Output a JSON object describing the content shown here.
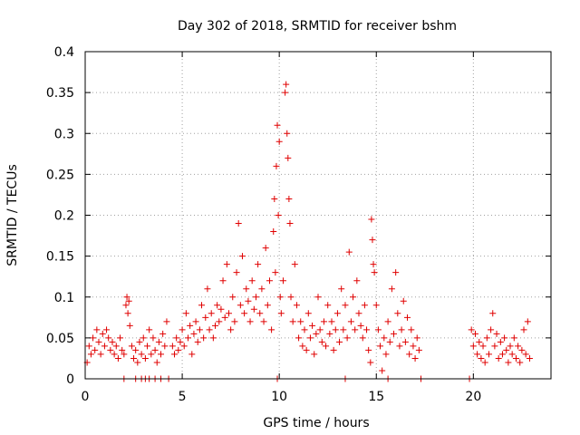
{
  "chart_data": {
    "type": "scatter",
    "title": "Day 302 of 2018, SRMTID for receiver bshm",
    "xlabel": "GPS time / hours",
    "ylabel": "SRMTID / TECUs",
    "xlim": [
      0,
      24
    ],
    "ylim": [
      0,
      0.4
    ],
    "x_ticks": [
      0,
      5,
      10,
      15,
      20
    ],
    "x_tick_labels": [
      "0",
      "5",
      "10",
      "15",
      "20"
    ],
    "y_ticks": [
      0,
      0.05,
      0.1,
      0.15,
      0.2,
      0.25,
      0.3,
      0.35,
      0.4
    ],
    "y_tick_labels": [
      "0",
      "0.05",
      "0.1",
      "0.15",
      "0.2",
      "0.25",
      "0.3",
      "0.35",
      "0.4"
    ],
    "grid": true,
    "marker": "plus",
    "color": "#e00000",
    "series": [
      {
        "name": "SRMTID",
        "points": [
          [
            0.1,
            0.02
          ],
          [
            0.2,
            0.04
          ],
          [
            0.3,
            0.03
          ],
          [
            0.4,
            0.05
          ],
          [
            0.5,
            0.035
          ],
          [
            0.6,
            0.06
          ],
          [
            0.7,
            0.045
          ],
          [
            0.8,
            0.03
          ],
          [
            0.9,
            0.055
          ],
          [
            1.0,
            0.04
          ],
          [
            1.1,
            0.06
          ],
          [
            1.2,
            0.05
          ],
          [
            1.3,
            0.035
          ],
          [
            1.4,
            0.045
          ],
          [
            1.5,
            0.03
          ],
          [
            1.6,
            0.04
          ],
          [
            1.7,
            0.025
          ],
          [
            1.8,
            0.05
          ],
          [
            1.9,
            0.035
          ],
          [
            2.0,
            0.03
          ],
          [
            2.1,
            0.09
          ],
          [
            2.15,
            0.1
          ],
          [
            2.2,
            0.08
          ],
          [
            2.25,
            0.095
          ],
          [
            2.3,
            0.065
          ],
          [
            2.4,
            0.04
          ],
          [
            2.5,
            0.025
          ],
          [
            2.6,
            0.035
          ],
          [
            2.7,
            0.02
          ],
          [
            2.8,
            0.045
          ],
          [
            2.9,
            0.03
          ],
          [
            3.0,
            0.05
          ],
          [
            3.1,
            0.025
          ],
          [
            3.2,
            0.04
          ],
          [
            3.3,
            0.06
          ],
          [
            3.4,
            0.03
          ],
          [
            3.5,
            0.05
          ],
          [
            3.6,
            0.035
          ],
          [
            3.7,
            0.02
          ],
          [
            3.8,
            0.045
          ],
          [
            3.9,
            0.03
          ],
          [
            4.0,
            0.055
          ],
          [
            4.1,
            0.04
          ],
          [
            4.2,
            0.07
          ],
          [
            4.5,
            0.04
          ],
          [
            4.6,
            0.03
          ],
          [
            4.7,
            0.05
          ],
          [
            4.8,
            0.035
          ],
          [
            4.9,
            0.045
          ],
          [
            5.0,
            0.06
          ],
          [
            5.1,
            0.04
          ],
          [
            5.2,
            0.08
          ],
          [
            5.3,
            0.05
          ],
          [
            5.4,
            0.065
          ],
          [
            5.5,
            0.03
          ],
          [
            5.6,
            0.055
          ],
          [
            5.7,
            0.07
          ],
          [
            5.8,
            0.045
          ],
          [
            5.9,
            0.06
          ],
          [
            6.0,
            0.09
          ],
          [
            6.1,
            0.05
          ],
          [
            6.2,
            0.075
          ],
          [
            6.3,
            0.11
          ],
          [
            6.4,
            0.06
          ],
          [
            6.5,
            0.08
          ],
          [
            6.6,
            0.05
          ],
          [
            6.7,
            0.065
          ],
          [
            6.8,
            0.09
          ],
          [
            6.9,
            0.07
          ],
          [
            7.0,
            0.085
          ],
          [
            7.1,
            0.12
          ],
          [
            7.2,
            0.075
          ],
          [
            7.3,
            0.14
          ],
          [
            7.4,
            0.08
          ],
          [
            7.5,
            0.06
          ],
          [
            7.6,
            0.1
          ],
          [
            7.7,
            0.07
          ],
          [
            7.8,
            0.13
          ],
          [
            7.9,
            0.19
          ],
          [
            8.0,
            0.09
          ],
          [
            8.1,
            0.15
          ],
          [
            8.2,
            0.08
          ],
          [
            8.3,
            0.11
          ],
          [
            8.4,
            0.095
          ],
          [
            8.5,
            0.07
          ],
          [
            8.6,
            0.12
          ],
          [
            8.7,
            0.085
          ],
          [
            8.8,
            0.1
          ],
          [
            8.9,
            0.14
          ],
          [
            9.0,
            0.08
          ],
          [
            9.1,
            0.11
          ],
          [
            9.2,
            0.07
          ],
          [
            9.3,
            0.16
          ],
          [
            9.4,
            0.09
          ],
          [
            9.5,
            0.12
          ],
          [
            9.6,
            0.06
          ],
          [
            9.7,
            0.18
          ],
          [
            9.75,
            0.22
          ],
          [
            9.8,
            0.13
          ],
          [
            9.85,
            0.26
          ],
          [
            9.9,
            0.31
          ],
          [
            9.95,
            0.2
          ],
          [
            10.0,
            0.29
          ],
          [
            10.05,
            0.1
          ],
          [
            10.1,
            0.08
          ],
          [
            10.2,
            0.12
          ],
          [
            10.3,
            0.35
          ],
          [
            10.35,
            0.36
          ],
          [
            10.4,
            0.3
          ],
          [
            10.45,
            0.27
          ],
          [
            10.5,
            0.22
          ],
          [
            10.55,
            0.19
          ],
          [
            10.6,
            0.1
          ],
          [
            10.7,
            0.07
          ],
          [
            10.8,
            0.14
          ],
          [
            10.9,
            0.09
          ],
          [
            11.0,
            0.05
          ],
          [
            11.1,
            0.07
          ],
          [
            11.2,
            0.04
          ],
          [
            11.3,
            0.06
          ],
          [
            11.4,
            0.035
          ],
          [
            11.5,
            0.08
          ],
          [
            11.6,
            0.05
          ],
          [
            11.7,
            0.065
          ],
          [
            11.8,
            0.03
          ],
          [
            11.9,
            0.055
          ],
          [
            12.0,
            0.1
          ],
          [
            12.1,
            0.06
          ],
          [
            12.2,
            0.045
          ],
          [
            12.3,
            0.07
          ],
          [
            12.4,
            0.04
          ],
          [
            12.5,
            0.09
          ],
          [
            12.6,
            0.055
          ],
          [
            12.7,
            0.07
          ],
          [
            12.8,
            0.035
          ],
          [
            12.9,
            0.06
          ],
          [
            13.0,
            0.08
          ],
          [
            13.1,
            0.045
          ],
          [
            13.2,
            0.11
          ],
          [
            13.3,
            0.06
          ],
          [
            13.4,
            0.09
          ],
          [
            13.5,
            0.05
          ],
          [
            13.6,
            0.155
          ],
          [
            13.7,
            0.07
          ],
          [
            13.8,
            0.1
          ],
          [
            13.9,
            0.06
          ],
          [
            14.0,
            0.12
          ],
          [
            14.1,
            0.08
          ],
          [
            14.2,
            0.065
          ],
          [
            14.3,
            0.05
          ],
          [
            14.4,
            0.09
          ],
          [
            14.5,
            0.06
          ],
          [
            14.6,
            0.035
          ],
          [
            14.7,
            0.02
          ],
          [
            14.75,
            0.195
          ],
          [
            14.8,
            0.17
          ],
          [
            14.85,
            0.14
          ],
          [
            14.9,
            0.13
          ],
          [
            15.0,
            0.09
          ],
          [
            15.1,
            0.06
          ],
          [
            15.2,
            0.04
          ],
          [
            15.3,
            0.01
          ],
          [
            15.4,
            0.05
          ],
          [
            15.5,
            0.03
          ],
          [
            15.6,
            0.07
          ],
          [
            15.7,
            0.045
          ],
          [
            15.8,
            0.11
          ],
          [
            15.9,
            0.055
          ],
          [
            16.0,
            0.13
          ],
          [
            16.1,
            0.08
          ],
          [
            16.2,
            0.04
          ],
          [
            16.3,
            0.06
          ],
          [
            16.4,
            0.095
          ],
          [
            16.5,
            0.045
          ],
          [
            16.6,
            0.075
          ],
          [
            16.7,
            0.03
          ],
          [
            16.8,
            0.06
          ],
          [
            16.9,
            0.04
          ],
          [
            17.0,
            0.025
          ],
          [
            17.1,
            0.05
          ],
          [
            17.2,
            0.035
          ],
          [
            19.9,
            0.06
          ],
          [
            20.0,
            0.04
          ],
          [
            20.1,
            0.055
          ],
          [
            20.2,
            0.03
          ],
          [
            20.3,
            0.045
          ],
          [
            20.4,
            0.025
          ],
          [
            20.5,
            0.04
          ],
          [
            20.6,
            0.02
          ],
          [
            20.7,
            0.05
          ],
          [
            20.8,
            0.03
          ],
          [
            20.9,
            0.06
          ],
          [
            21.0,
            0.08
          ],
          [
            21.1,
            0.04
          ],
          [
            21.2,
            0.055
          ],
          [
            21.3,
            0.025
          ],
          [
            21.4,
            0.045
          ],
          [
            21.5,
            0.03
          ],
          [
            21.6,
            0.05
          ],
          [
            21.7,
            0.035
          ],
          [
            21.8,
            0.02
          ],
          [
            21.9,
            0.04
          ],
          [
            22.0,
            0.03
          ],
          [
            22.1,
            0.05
          ],
          [
            22.2,
            0.025
          ],
          [
            22.3,
            0.04
          ],
          [
            22.4,
            0.02
          ],
          [
            22.5,
            0.035
          ],
          [
            22.6,
            0.06
          ],
          [
            22.7,
            0.03
          ],
          [
            22.8,
            0.07
          ],
          [
            22.9,
            0.025
          ],
          [
            2.0,
            0.0
          ],
          [
            2.6,
            0.0
          ],
          [
            2.9,
            0.0
          ],
          [
            3.1,
            0.0
          ],
          [
            3.3,
            0.0
          ],
          [
            3.6,
            0.0
          ],
          [
            3.9,
            0.0
          ],
          [
            4.3,
            0.0
          ],
          [
            9.9,
            0.0
          ],
          [
            13.4,
            0.0
          ],
          [
            15.6,
            0.0
          ],
          [
            17.3,
            0.0
          ],
          [
            19.8,
            0.0
          ]
        ]
      }
    ]
  }
}
